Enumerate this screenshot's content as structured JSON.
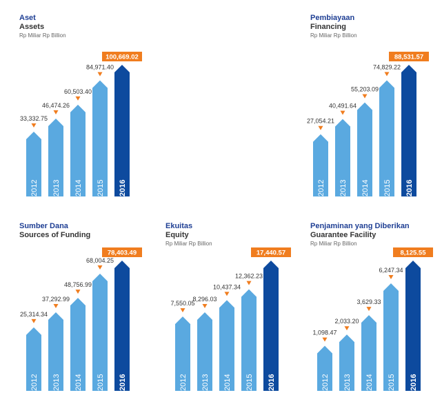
{
  "colors": {
    "past_bar": "#5aa9e0",
    "current_bar": "#0d4a9e",
    "marker": "#f07d1f",
    "callout_bg": "#f07d1f",
    "callout_text": "#ffffff",
    "value_text": "#333333",
    "title": "#1f3f94",
    "subtitle": "#333333"
  },
  "chart_data": [
    {
      "type": "bar",
      "title": "Aset",
      "subtitle": "Assets",
      "unit": "Rp Miliar Rp Billion",
      "categories": [
        "2012",
        "2013",
        "2014",
        "2015",
        "2016"
      ],
      "values": [
        33332.75,
        46474.26,
        60503.4,
        84971.4,
        100669.02
      ],
      "labels": [
        "33,332.75",
        "46,474.26",
        "60,503.40",
        "84,971.40",
        "100,669.02"
      ],
      "highlight_index": 4
    },
    {
      "type": "bar",
      "title": "Pembiayaan",
      "subtitle": "Financing",
      "unit": "Rp Miliar Rp Billion",
      "categories": [
        "2012",
        "2013",
        "2014",
        "2015",
        "2016"
      ],
      "values": [
        27054.21,
        40491.64,
        55203.09,
        74829.22,
        88531.57
      ],
      "labels": [
        "27,054.21",
        "40,491.64",
        "55,203.09",
        "74,829.22",
        "88,531.57"
      ],
      "highlight_index": 4
    },
    {
      "type": "bar",
      "title": "Sumber Dana",
      "subtitle": "Sources of Funding",
      "unit": "",
      "categories": [
        "2012",
        "2013",
        "2014",
        "2015",
        "2016"
      ],
      "values": [
        25314.34,
        37292.99,
        48756.99,
        68004.25,
        78403.49
      ],
      "labels": [
        "25,314.34",
        "37,292.99",
        "48,756.99",
        "68,004.25",
        "78,403.49"
      ],
      "highlight_index": 4
    },
    {
      "type": "bar",
      "title": "Ekuitas",
      "subtitle": "Equity",
      "unit": "Rp Miliar Rp Billion",
      "categories": [
        "2012",
        "2013",
        "2014",
        "2015",
        "2016"
      ],
      "values": [
        7550.05,
        8296.03,
        10437.34,
        12362.23,
        17440.57
      ],
      "labels": [
        "7,550.05",
        "8,296.03",
        "10,437.34",
        "12,362.23",
        "17,440.57"
      ],
      "highlight_index": 4
    },
    {
      "type": "bar",
      "title": "Penjaminan yang Diberikan",
      "subtitle": "Guarantee Facility",
      "unit": "Rp Miliar Rp Billion",
      "categories": [
        "2012",
        "2013",
        "2014",
        "2015",
        "2016"
      ],
      "values": [
        1098.47,
        2033.2,
        3629.33,
        6247.34,
        8125.55
      ],
      "labels": [
        "1,098.47",
        "2,033.20",
        "3,629.33",
        "6,247.34",
        "8,125.55"
      ],
      "highlight_index": 4
    }
  ]
}
